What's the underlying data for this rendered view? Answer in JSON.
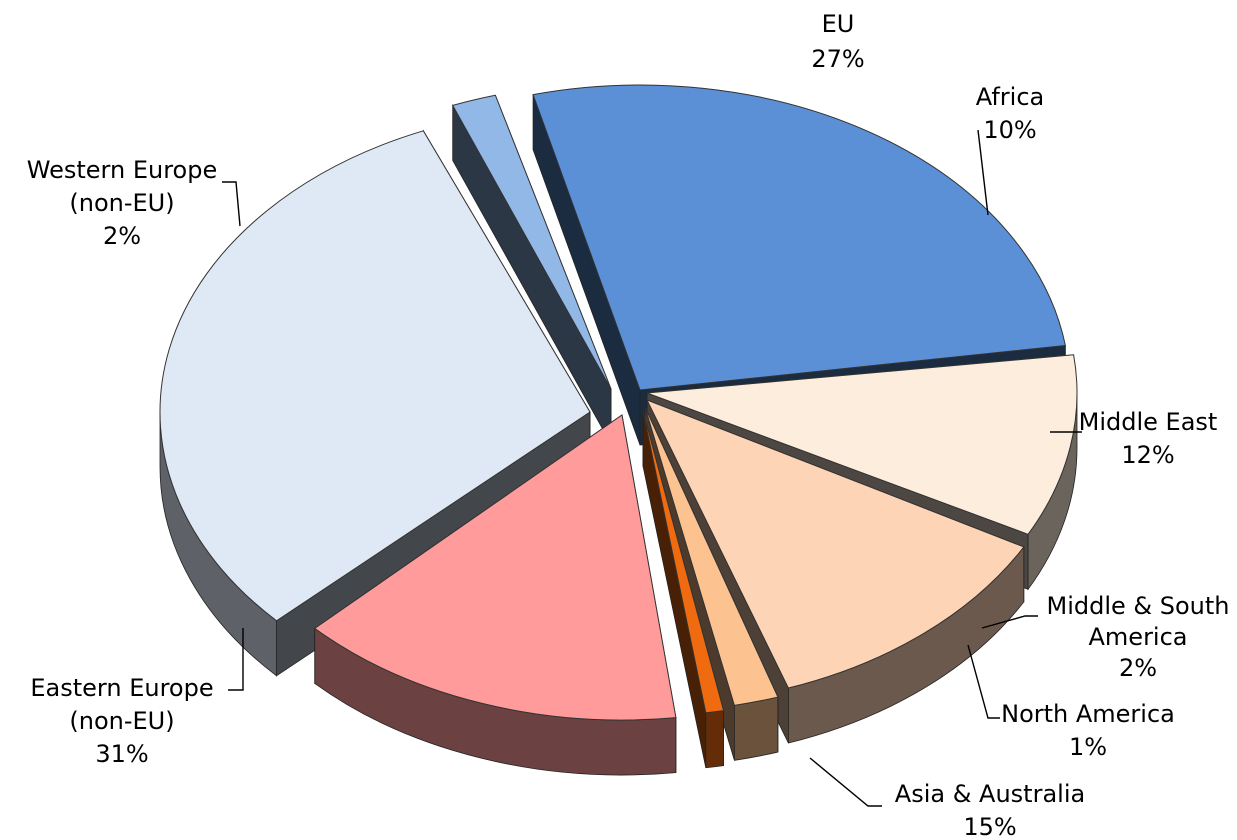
{
  "chart_data": {
    "type": "pie",
    "style": "3d-exploded",
    "slices": [
      {
        "name": "EU",
        "value": 27,
        "label": "27%",
        "color": "#5b8fd6"
      },
      {
        "name": "Africa",
        "value": 10,
        "label": "10%",
        "color": "#fdeddd"
      },
      {
        "name": "Middle East",
        "value": 12,
        "label": "12%",
        "color": "#fdd5b6"
      },
      {
        "name": "Middle & South America",
        "value": 2,
        "label": "2%",
        "color": "#fcc391"
      },
      {
        "name": "North America",
        "value": 1,
        "label": "1%",
        "color": "#f06a10"
      },
      {
        "name": "Asia & Australia",
        "value": 15,
        "label": "15%",
        "color": "#ff9b9b"
      },
      {
        "name": "Eastern Europe (non-EU)",
        "value": 31,
        "label": "31%",
        "color": "#dfe8f5"
      },
      {
        "name": "Western Europe (non-EU)",
        "value": 2,
        "label": "2%",
        "color": "#92b8e8"
      }
    ],
    "labels": [
      {
        "lines": [
          "EU",
          "27%"
        ]
      },
      {
        "lines": [
          "Africa",
          "10%"
        ]
      },
      {
        "lines": [
          "Middle East",
          "12%"
        ]
      },
      {
        "lines": [
          "Middle & South",
          "America",
          "2%"
        ]
      },
      {
        "lines": [
          "North America",
          "1%"
        ]
      },
      {
        "lines": [
          "Asia & Australia",
          "15%"
        ]
      },
      {
        "lines": [
          "Eastern Europe",
          "(non-EU)",
          "31%"
        ]
      },
      {
        "lines": [
          "Western Europe",
          "(non-EU)",
          "2%"
        ]
      }
    ]
  }
}
